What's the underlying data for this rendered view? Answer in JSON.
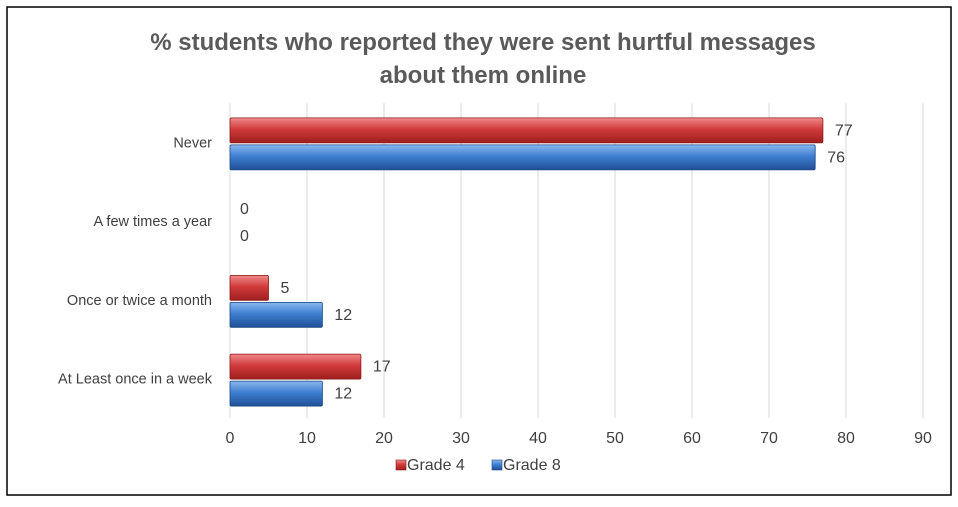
{
  "chart_data": {
    "type": "bar",
    "orientation": "horizontal",
    "title": "% students who reported they were sent hurtful messages about them online",
    "title_lines": [
      "% students who reported they were sent hurtful messages",
      "about them online"
    ],
    "categories": [
      "Never",
      "A few times a year",
      "Once or twice a month",
      "At Least once in a week"
    ],
    "series": [
      {
        "name": "Grade 4",
        "values": [
          77,
          0,
          5,
          17
        ],
        "color": "#d23b3b"
      },
      {
        "name": "Grade 8",
        "values": [
          76,
          0,
          12,
          12
        ],
        "color": "#3f7fd1"
      }
    ],
    "x_ticks": [
      0,
      10,
      20,
      30,
      40,
      50,
      60,
      70,
      80,
      90
    ],
    "xlim": [
      0,
      90
    ],
    "xlabel": "",
    "ylabel": "",
    "grid": true,
    "legend_position": "bottom",
    "data_labels": true
  }
}
